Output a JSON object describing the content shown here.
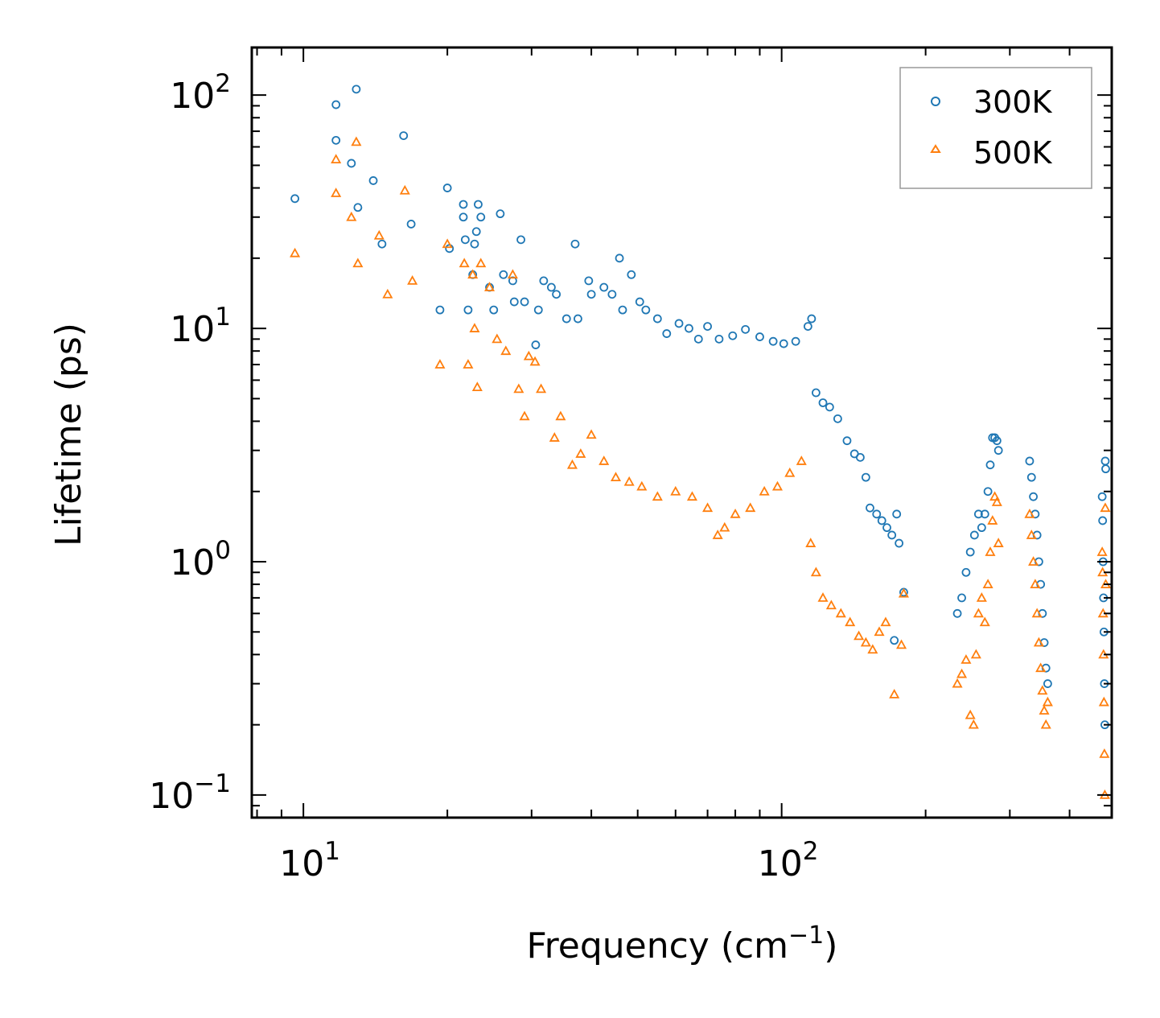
{
  "chart_data": {
    "type": "scatter",
    "title": "",
    "xlabel": "Frequency (cm⁻¹)",
    "xlabel_base": "Frequency (cm",
    "xlabel_exp": "−1",
    "xlabel_close": ")",
    "ylabel": "Lifetime (ps)",
    "xscale": "log",
    "yscale": "log",
    "xlim": [
      7.8,
      490
    ],
    "ylim": [
      0.08,
      160
    ],
    "xticks": [
      {
        "value": 10,
        "base": "10",
        "exp": "1"
      },
      {
        "value": 100,
        "base": "10",
        "exp": "2"
      }
    ],
    "yticks": [
      {
        "value": 0.1,
        "base": "10",
        "exp": "−1"
      },
      {
        "value": 1,
        "base": "10",
        "exp": "0"
      },
      {
        "value": 10,
        "base": "10",
        "exp": "1"
      },
      {
        "value": 100,
        "base": "10",
        "exp": "2"
      }
    ],
    "legend": {
      "position": "top-right",
      "entries": [
        "300K",
        "500K"
      ]
    },
    "series": [
      {
        "name": "300K",
        "marker": "circle",
        "color": "#1f77b4",
        "points": [
          [
            9.6,
            36
          ],
          [
            11.7,
            91
          ],
          [
            11.7,
            64
          ],
          [
            12.9,
            106
          ],
          [
            12.6,
            51
          ],
          [
            13.0,
            33
          ],
          [
            14.0,
            43
          ],
          [
            14.6,
            23
          ],
          [
            16.2,
            67
          ],
          [
            16.8,
            28
          ],
          [
            19.3,
            12
          ],
          [
            20.0,
            40
          ],
          [
            20.2,
            22
          ],
          [
            21.6,
            34
          ],
          [
            21.6,
            30
          ],
          [
            21.8,
            24
          ],
          [
            22.1,
            12
          ],
          [
            22.6,
            17
          ],
          [
            22.8,
            23
          ],
          [
            23.0,
            26
          ],
          [
            23.2,
            34
          ],
          [
            23.5,
            30
          ],
          [
            24.5,
            15
          ],
          [
            25.0,
            12
          ],
          [
            25.8,
            31
          ],
          [
            26.2,
            17
          ],
          [
            27.4,
            16
          ],
          [
            27.6,
            13
          ],
          [
            28.5,
            24
          ],
          [
            29.0,
            13
          ],
          [
            30.6,
            8.5
          ],
          [
            31.0,
            12
          ],
          [
            31.8,
            16
          ],
          [
            33.0,
            15
          ],
          [
            33.8,
            14
          ],
          [
            35.5,
            11
          ],
          [
            37.0,
            23
          ],
          [
            37.5,
            11
          ],
          [
            39.5,
            16
          ],
          [
            40.0,
            14
          ],
          [
            42.5,
            15
          ],
          [
            44.2,
            14
          ],
          [
            45.8,
            20
          ],
          [
            46.5,
            12
          ],
          [
            48.5,
            17
          ],
          [
            50.5,
            13
          ],
          [
            52.0,
            12
          ],
          [
            55.0,
            11
          ],
          [
            57.5,
            9.5
          ],
          [
            61.0,
            10.5
          ],
          [
            64.0,
            10
          ],
          [
            67.0,
            9
          ],
          [
            70.0,
            10.2
          ],
          [
            74.0,
            9
          ],
          [
            79.0,
            9.3
          ],
          [
            84.0,
            9.9
          ],
          [
            90.0,
            9.2
          ],
          [
            96.0,
            8.8
          ],
          [
            101.0,
            8.6
          ],
          [
            107.0,
            8.8
          ],
          [
            113.5,
            10.2
          ],
          [
            115.5,
            11
          ],
          [
            118.0,
            5.3
          ],
          [
            122.0,
            4.8
          ],
          [
            126.0,
            4.6
          ],
          [
            131.0,
            4.1
          ],
          [
            137.0,
            3.3
          ],
          [
            142.0,
            2.9
          ],
          [
            146.0,
            2.8
          ],
          [
            150.0,
            2.3
          ],
          [
            153.0,
            1.7
          ],
          [
            158.0,
            1.6
          ],
          [
            162.0,
            1.5
          ],
          [
            166.0,
            1.4
          ],
          [
            170.0,
            1.3
          ],
          [
            174.0,
            1.6
          ],
          [
            176.0,
            1.2
          ],
          [
            180.0,
            0.74
          ],
          [
            172.0,
            0.46
          ],
          [
            233.0,
            0.6
          ],
          [
            238.0,
            0.7
          ],
          [
            243.0,
            0.9
          ],
          [
            248.0,
            1.1
          ],
          [
            253.0,
            1.3
          ],
          [
            258.0,
            1.6
          ],
          [
            262.0,
            1.4
          ],
          [
            266.0,
            1.6
          ],
          [
            270.0,
            2.0
          ],
          [
            273.0,
            2.6
          ],
          [
            276.0,
            3.4
          ],
          [
            279.0,
            3.4
          ],
          [
            282.0,
            3.3
          ],
          [
            284.0,
            3.0
          ],
          [
            330.0,
            2.7
          ],
          [
            333.0,
            2.3
          ],
          [
            336.0,
            1.9
          ],
          [
            339.0,
            1.6
          ],
          [
            342.0,
            1.3
          ],
          [
            345.0,
            1.0
          ],
          [
            348.0,
            0.8
          ],
          [
            351.0,
            0.6
          ],
          [
            354.0,
            0.45
          ],
          [
            357.0,
            0.35
          ],
          [
            360.0,
            0.3
          ],
          [
            468.0,
            1.9
          ],
          [
            469.0,
            1.5
          ],
          [
            470.0,
            1.0
          ],
          [
            471.0,
            0.7
          ],
          [
            472.0,
            0.5
          ],
          [
            473.0,
            0.3
          ],
          [
            474.0,
            0.2
          ],
          [
            475.0,
            2.7
          ],
          [
            476.0,
            2.5
          ]
        ]
      },
      {
        "name": "500K",
        "marker": "triangle",
        "color": "#ff7f0e",
        "points": [
          [
            9.6,
            21
          ],
          [
            11.7,
            53
          ],
          [
            11.7,
            38
          ],
          [
            12.9,
            63
          ],
          [
            12.6,
            30
          ],
          [
            13.0,
            19
          ],
          [
            14.4,
            25
          ],
          [
            15.0,
            14
          ],
          [
            16.3,
            39
          ],
          [
            16.9,
            16
          ],
          [
            19.3,
            7
          ],
          [
            20.0,
            23
          ],
          [
            21.7,
            19
          ],
          [
            22.1,
            7
          ],
          [
            22.6,
            17
          ],
          [
            22.8,
            10
          ],
          [
            23.1,
            5.6
          ],
          [
            23.5,
            19
          ],
          [
            24.5,
            15
          ],
          [
            25.4,
            9
          ],
          [
            26.5,
            8
          ],
          [
            27.4,
            17
          ],
          [
            28.2,
            5.5
          ],
          [
            29.0,
            4.2
          ],
          [
            29.6,
            7.6
          ],
          [
            30.5,
            7.2
          ],
          [
            31.4,
            5.5
          ],
          [
            33.5,
            3.4
          ],
          [
            34.5,
            4.2
          ],
          [
            36.5,
            2.6
          ],
          [
            38.0,
            2.9
          ],
          [
            40.0,
            3.5
          ],
          [
            42.5,
            2.7
          ],
          [
            45.0,
            2.3
          ],
          [
            48.0,
            2.2
          ],
          [
            51.0,
            2.1
          ],
          [
            55.0,
            1.9
          ],
          [
            60.0,
            2.0
          ],
          [
            65.0,
            1.9
          ],
          [
            70.0,
            1.7
          ],
          [
            73.5,
            1.3
          ],
          [
            76.0,
            1.4
          ],
          [
            80.0,
            1.6
          ],
          [
            86.0,
            1.7
          ],
          [
            92.0,
            2.0
          ],
          [
            98.0,
            2.1
          ],
          [
            104.0,
            2.4
          ],
          [
            110.0,
            2.7
          ],
          [
            115.0,
            1.2
          ],
          [
            118.0,
            0.9
          ],
          [
            122.0,
            0.7
          ],
          [
            127.0,
            0.65
          ],
          [
            133.0,
            0.6
          ],
          [
            139.0,
            0.55
          ],
          [
            145.0,
            0.48
          ],
          [
            150.0,
            0.45
          ],
          [
            155.0,
            0.42
          ],
          [
            160.0,
            0.5
          ],
          [
            165.0,
            0.55
          ],
          [
            172.0,
            0.27
          ],
          [
            178.0,
            0.44
          ],
          [
            180.0,
            0.73
          ],
          [
            233.0,
            0.3
          ],
          [
            238.0,
            0.33
          ],
          [
            243.0,
            0.38
          ],
          [
            248.0,
            0.22
          ],
          [
            252.0,
            0.2
          ],
          [
            255.0,
            0.4
          ],
          [
            258.0,
            0.6
          ],
          [
            262.0,
            0.7
          ],
          [
            266.0,
            0.55
          ],
          [
            270.0,
            0.8
          ],
          [
            273.0,
            1.1
          ],
          [
            276.0,
            1.5
          ],
          [
            279.0,
            1.9
          ],
          [
            282.0,
            1.8
          ],
          [
            284.0,
            1.2
          ],
          [
            330.0,
            1.6
          ],
          [
            333.0,
            1.3
          ],
          [
            336.0,
            1.0
          ],
          [
            339.0,
            0.8
          ],
          [
            342.0,
            0.6
          ],
          [
            345.0,
            0.45
          ],
          [
            348.0,
            0.35
          ],
          [
            351.0,
            0.28
          ],
          [
            354.0,
            0.23
          ],
          [
            357.0,
            0.2
          ],
          [
            360.0,
            0.25
          ],
          [
            468.0,
            1.1
          ],
          [
            469.0,
            0.9
          ],
          [
            470.0,
            0.6
          ],
          [
            471.0,
            0.4
          ],
          [
            472.0,
            0.25
          ],
          [
            473.0,
            0.15
          ],
          [
            474.0,
            0.1
          ],
          [
            475.0,
            1.7
          ],
          [
            476.0,
            0.8
          ]
        ]
      }
    ]
  }
}
